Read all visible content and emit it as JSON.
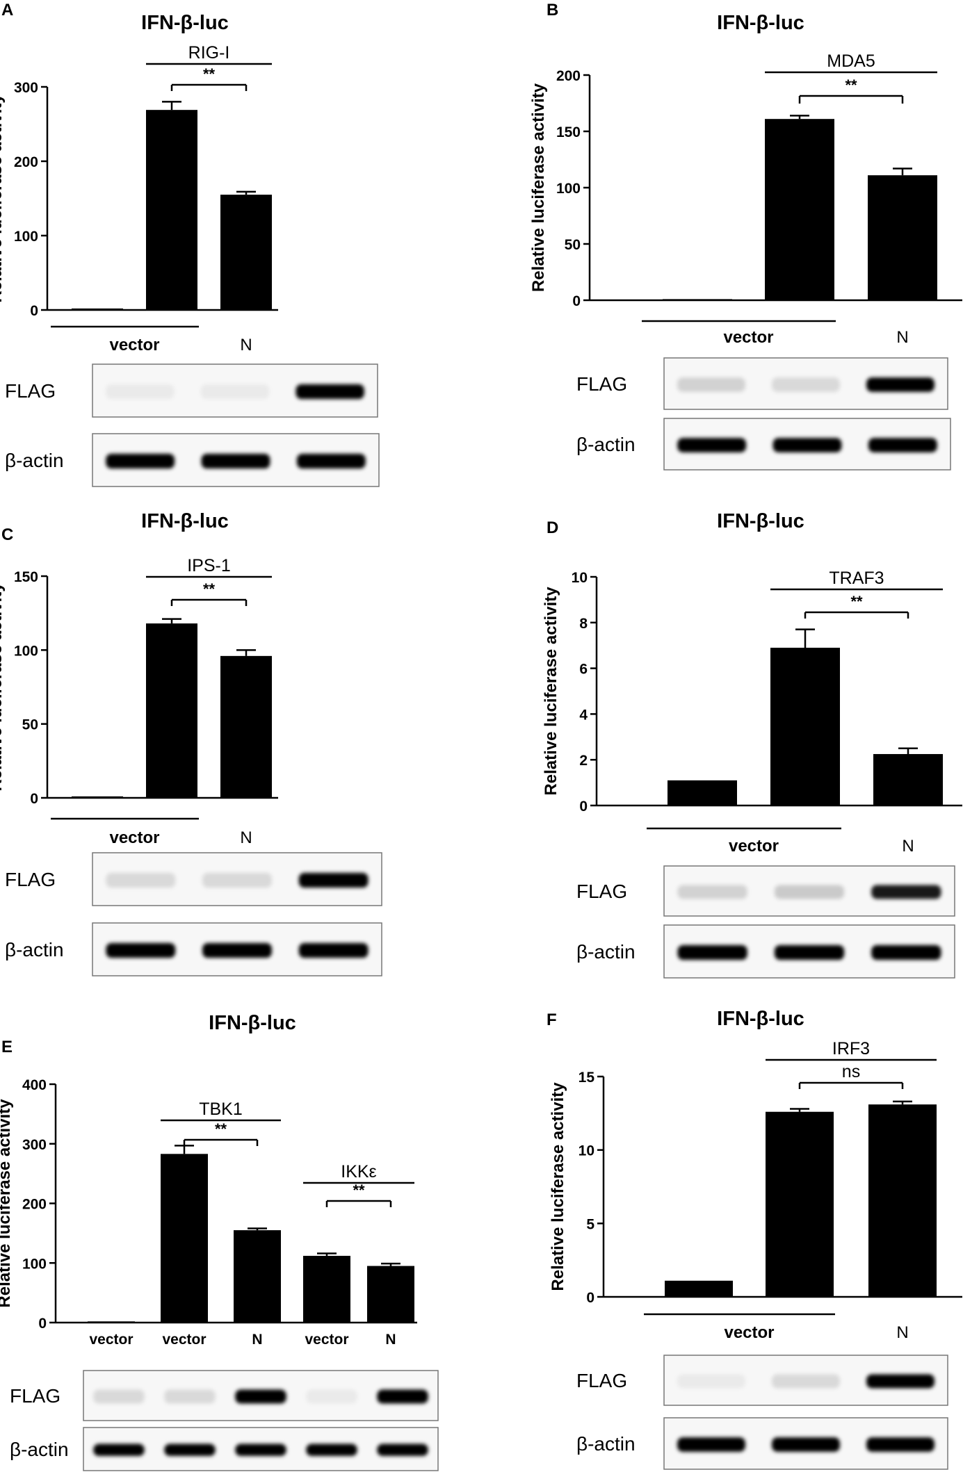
{
  "figure": {
    "blot_labels": {
      "flag": "FLAG",
      "actin": "β-actin"
    }
  },
  "chart_data": [
    {
      "panel": "A",
      "type": "bar",
      "title": "IFN-β-luc",
      "ylabel": "Relative luciferase activity",
      "ylim": [
        0,
        300
      ],
      "yticks": [
        0,
        100,
        200,
        300
      ],
      "values": [
        2,
        269,
        155
      ],
      "errors": [
        0,
        11,
        4
      ],
      "brackets": [
        {
          "label": "RIG-I",
          "from": 1,
          "to": 2
        },
        {
          "label": "**",
          "from": 1,
          "to": 2
        }
      ],
      "groups": [
        {
          "label": "vector",
          "from": 0,
          "to": 1
        },
        {
          "label": "N",
          "from": 2,
          "to": 2
        }
      ],
      "blot_flag": [
        0.05,
        0.05,
        1
      ],
      "blot_actin": [
        1,
        1,
        1
      ]
    },
    {
      "panel": "B",
      "type": "bar",
      "title": "IFN-β-luc",
      "ylabel": "Relative luciferase activity",
      "ylim": [
        0,
        200
      ],
      "yticks": [
        0,
        50,
        100,
        150,
        200
      ],
      "values": [
        1,
        161,
        111
      ],
      "errors": [
        0,
        3,
        6
      ],
      "brackets": [
        {
          "label": "MDA5",
          "from": 1,
          "to": 2
        },
        {
          "label": "**",
          "from": 1,
          "to": 2
        }
      ],
      "groups": [
        {
          "label": "vector",
          "from": 0,
          "to": 1
        },
        {
          "label": "N",
          "from": 2,
          "to": 2
        }
      ],
      "blot_flag": [
        0.15,
        0.12,
        1
      ],
      "blot_actin": [
        1,
        1,
        1
      ]
    },
    {
      "panel": "C",
      "type": "bar",
      "title": "IFN-β-luc",
      "ylabel": "Relative luciferase activity",
      "ylim": [
        0,
        150
      ],
      "yticks": [
        0,
        50,
        100,
        150
      ],
      "values": [
        1,
        118,
        96
      ],
      "errors": [
        0,
        3,
        4
      ],
      "brackets": [
        {
          "label": "IPS-1",
          "from": 1,
          "to": 2
        },
        {
          "label": "**",
          "from": 1,
          "to": 2
        }
      ],
      "groups": [
        {
          "label": "vector",
          "from": 0,
          "to": 1
        },
        {
          "label": "N",
          "from": 2,
          "to": 2
        }
      ],
      "blot_flag": [
        0.12,
        0.12,
        1
      ],
      "blot_actin": [
        1,
        1,
        1
      ]
    },
    {
      "panel": "D",
      "type": "bar",
      "title": "IFN-β-luc",
      "ylabel": "Relative luciferase activity",
      "ylim": [
        0,
        10
      ],
      "yticks": [
        0,
        2,
        4,
        6,
        8,
        10
      ],
      "values": [
        1.1,
        6.9,
        2.25
      ],
      "errors": [
        0,
        0.8,
        0.25
      ],
      "brackets": [
        {
          "label": "TRAF3",
          "from": 1,
          "to": 2
        },
        {
          "label": "**",
          "from": 1,
          "to": 2
        }
      ],
      "groups": [
        {
          "label": "vector",
          "from": 0,
          "to": 1
        },
        {
          "label": "N",
          "from": 2,
          "to": 2
        }
      ],
      "blot_flag": [
        0.15,
        0.18,
        0.9
      ],
      "blot_actin": [
        1,
        1,
        1
      ]
    },
    {
      "panel": "E",
      "type": "bar",
      "title": "IFN-β-luc",
      "ylabel": "Relative luciferase activity",
      "ylim": [
        0,
        400
      ],
      "yticks": [
        0,
        100,
        200,
        300,
        400
      ],
      "categories": [
        "vector",
        "vector",
        "N",
        "vector",
        "N"
      ],
      "values": [
        2,
        283,
        155,
        112,
        95
      ],
      "errors": [
        0,
        14,
        3,
        4,
        4
      ],
      "brackets": [
        {
          "label": "TBK1",
          "from": 1,
          "to": 2
        },
        {
          "label": "**",
          "from": 1,
          "to": 2
        },
        {
          "label": "IKKε",
          "from": 3,
          "to": 4
        },
        {
          "label": "**",
          "from": 3,
          "to": 4
        }
      ],
      "blot_flag": [
        0.12,
        0.12,
        1,
        0.05,
        1
      ],
      "blot_actin": [
        1,
        1,
        1,
        1,
        1
      ]
    },
    {
      "panel": "F",
      "type": "bar",
      "title": "IFN-β-luc",
      "ylabel": "Relative luciferase activity",
      "ylim": [
        0,
        15
      ],
      "yticks": [
        0,
        5,
        10,
        15
      ],
      "values": [
        1.1,
        12.6,
        13.1
      ],
      "errors": [
        0,
        0.2,
        0.2
      ],
      "brackets": [
        {
          "label": "IRF3",
          "from": 1,
          "to": 2
        },
        {
          "label": "ns",
          "from": 1,
          "to": 2
        }
      ],
      "groups": [
        {
          "label": "vector",
          "from": 0,
          "to": 1
        },
        {
          "label": "N",
          "from": 2,
          "to": 2
        }
      ],
      "blot_flag": [
        0.05,
        0.12,
        1
      ],
      "blot_actin": [
        1,
        1,
        1
      ]
    }
  ]
}
